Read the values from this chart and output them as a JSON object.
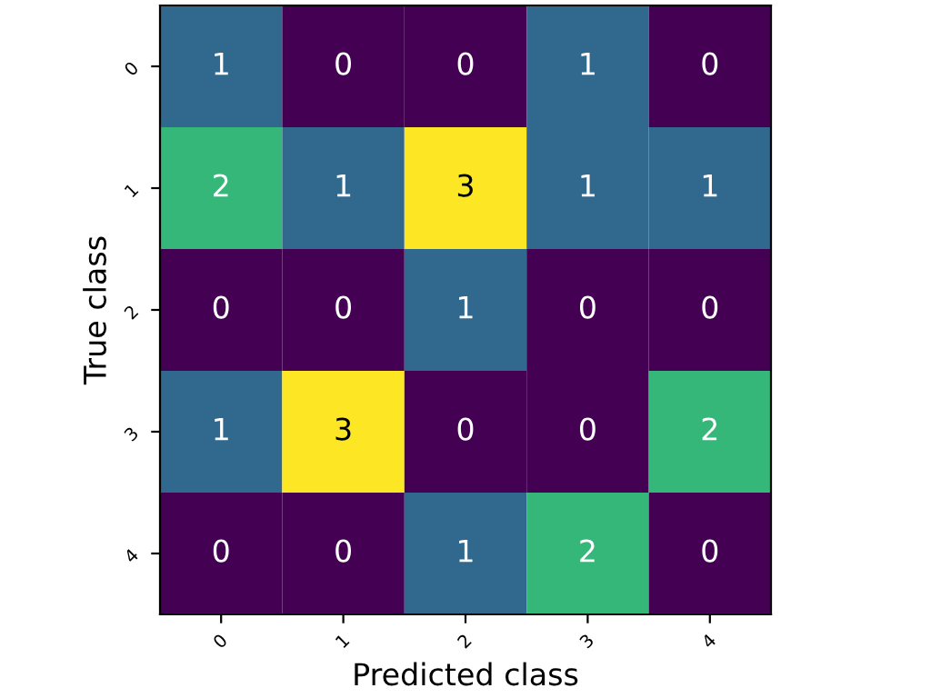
{
  "chart_data": {
    "type": "heatmap",
    "xlabel": "Predicted class",
    "ylabel": "True class",
    "categories": [
      "0",
      "1",
      "2",
      "3",
      "4"
    ],
    "y_categories": [
      "0",
      "1",
      "2",
      "3",
      "4"
    ],
    "cells": [
      [
        1,
        0,
        0,
        1,
        0
      ],
      [
        2,
        1,
        3,
        1,
        1
      ],
      [
        0,
        0,
        1,
        0,
        0
      ],
      [
        1,
        3,
        0,
        0,
        2
      ],
      [
        0,
        0,
        1,
        2,
        0
      ]
    ],
    "data_labels": true
  }
}
